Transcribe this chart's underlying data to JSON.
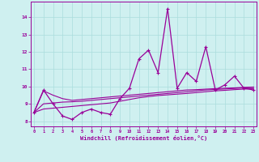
{
  "xlabel": "Windchill (Refroidissement éolien,°C)",
  "x_values": [
    0,
    1,
    2,
    3,
    4,
    5,
    6,
    7,
    8,
    9,
    10,
    11,
    12,
    13,
    14,
    15,
    16,
    17,
    18,
    19,
    20,
    21,
    22,
    23
  ],
  "main_line": [
    8.5,
    9.8,
    9.0,
    8.3,
    8.1,
    8.5,
    8.7,
    8.5,
    8.4,
    9.3,
    9.9,
    11.6,
    12.1,
    10.8,
    14.5,
    9.9,
    10.8,
    10.3,
    12.3,
    9.8,
    10.1,
    10.6,
    9.9,
    9.8
  ],
  "trend1": [
    8.5,
    9.75,
    9.5,
    9.3,
    9.2,
    9.25,
    9.3,
    9.35,
    9.4,
    9.45,
    9.5,
    9.55,
    9.6,
    9.65,
    9.7,
    9.75,
    9.8,
    9.82,
    9.85,
    9.88,
    9.9,
    9.92,
    9.95,
    9.97
  ],
  "trend2": [
    8.5,
    9.0,
    9.05,
    9.1,
    9.12,
    9.15,
    9.2,
    9.25,
    9.3,
    9.35,
    9.4,
    9.45,
    9.5,
    9.55,
    9.6,
    9.65,
    9.7,
    9.75,
    9.8,
    9.83,
    9.86,
    9.89,
    9.92,
    9.95
  ],
  "trend3": [
    8.5,
    8.7,
    8.75,
    8.8,
    8.85,
    8.9,
    8.95,
    9.0,
    9.05,
    9.15,
    9.25,
    9.35,
    9.42,
    9.48,
    9.52,
    9.56,
    9.6,
    9.65,
    9.7,
    9.75,
    9.78,
    9.82,
    9.85,
    9.88
  ],
  "line_color": "#990099",
  "bg_color": "#cff0f0",
  "grid_color": "#aadddd",
  "yticks": [
    8,
    9,
    10,
    11,
    12,
    13,
    14
  ],
  "xticks": [
    0,
    1,
    2,
    3,
    4,
    5,
    6,
    7,
    8,
    9,
    10,
    11,
    12,
    13,
    14,
    15,
    16,
    17,
    18,
    19,
    20,
    21,
    22,
    23
  ],
  "ylim": [
    7.7,
    14.9
  ],
  "xlim": [
    -0.3,
    23.3
  ]
}
